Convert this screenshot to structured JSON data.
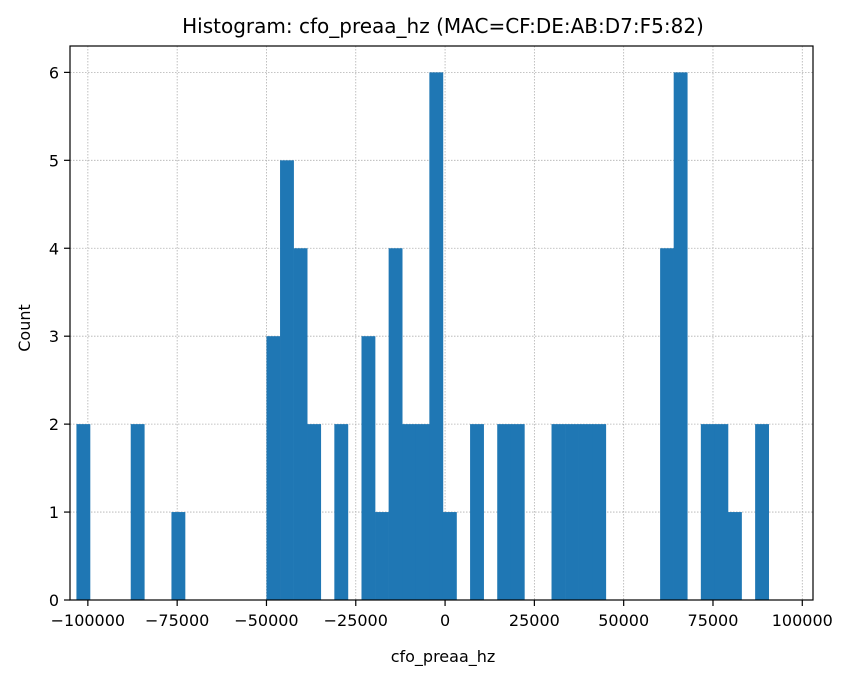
{
  "chart_data": {
    "type": "bar",
    "title": "Histogram: cfo_preaa_hz (MAC=CF:DE:AB:D7:F5:82)",
    "xlabel": "cfo_preaa_hz",
    "ylabel": "Count",
    "xlim": [
      -105000,
      103000
    ],
    "ylim": [
      0,
      6.3
    ],
    "grid": true,
    "bar_color": "#1f77b4",
    "bin_width": 3800,
    "xticks": [
      -100000,
      -75000,
      -50000,
      -25000,
      0,
      25000,
      50000,
      75000,
      100000
    ],
    "xtick_labels": [
      "−100000",
      "−75000",
      "−50000",
      "−25000",
      "0",
      "25000",
      "50000",
      "75000",
      "100000"
    ],
    "yticks": [
      0,
      1,
      2,
      3,
      4,
      5,
      6
    ],
    "ytick_labels": [
      "0",
      "1",
      "2",
      "3",
      "4",
      "5",
      "6"
    ],
    "bins": [
      {
        "x": -101300,
        "count": 2
      },
      {
        "x": -86100,
        "count": 2
      },
      {
        "x": -74700,
        "count": 1
      },
      {
        "x": -48100,
        "count": 3
      },
      {
        "x": -44300,
        "count": 5
      },
      {
        "x": -40500,
        "count": 4
      },
      {
        "x": -36700,
        "count": 2
      },
      {
        "x": -29100,
        "count": 2
      },
      {
        "x": -21500,
        "count": 3
      },
      {
        "x": -17700,
        "count": 1
      },
      {
        "x": -13900,
        "count": 4
      },
      {
        "x": -10100,
        "count": 2
      },
      {
        "x": -6300,
        "count": 2
      },
      {
        "x": -2500,
        "count": 6
      },
      {
        "x": 1300,
        "count": 1
      },
      {
        "x": 8900,
        "count": 2
      },
      {
        "x": 16500,
        "count": 2
      },
      {
        "x": 20300,
        "count": 2
      },
      {
        "x": 31700,
        "count": 2
      },
      {
        "x": 35500,
        "count": 2
      },
      {
        "x": 39300,
        "count": 2
      },
      {
        "x": 43100,
        "count": 2
      },
      {
        "x": 62100,
        "count": 4
      },
      {
        "x": 65900,
        "count": 6
      },
      {
        "x": 73500,
        "count": 2
      },
      {
        "x": 77300,
        "count": 2
      },
      {
        "x": 81100,
        "count": 1
      },
      {
        "x": 88700,
        "count": 2
      }
    ]
  }
}
